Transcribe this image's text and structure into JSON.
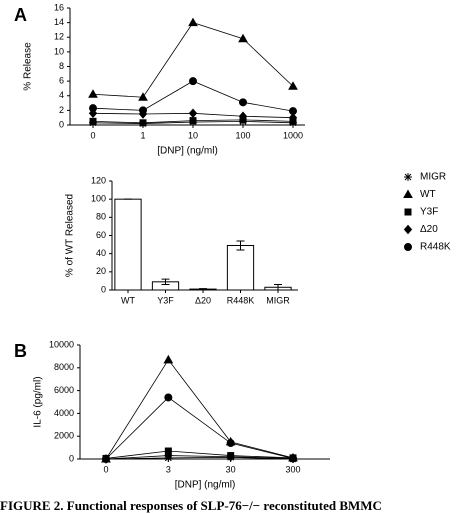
{
  "panel_labels": [
    "A",
    "B"
  ],
  "caption": "FIGURE 2.  Functional responses of SLP-76−/− reconstituted BMMC",
  "chart_data": [
    {
      "type": "line",
      "xlabel": "[DNP] (ng/ml)",
      "ylabel": "% Release",
      "categories": [
        "0",
        "1",
        "10",
        "100",
        "1000"
      ],
      "ylim": [
        0,
        16
      ],
      "yticks": [
        0,
        2,
        4,
        6,
        8,
        10,
        12,
        14,
        16
      ],
      "series": [
        {
          "name": "MIGR",
          "color": "#000000",
          "marker": "asterisk",
          "values": [
            0.3,
            0.2,
            0.4,
            0.5,
            0.3
          ]
        },
        {
          "name": "WT",
          "color": "#000000",
          "marker": "triangle",
          "values": [
            4.2,
            3.8,
            14,
            11.8,
            5.3
          ]
        },
        {
          "name": "Y3F",
          "color": "#000000",
          "marker": "square",
          "values": [
            0.5,
            0.3,
            0.6,
            0.7,
            0.5
          ]
        },
        {
          "name": "Δ20",
          "color": "#000000",
          "marker": "diamond",
          "values": [
            1.6,
            1.5,
            1.6,
            1.2,
            1.0
          ]
        },
        {
          "name": "R448K",
          "color": "#000000",
          "marker": "circle",
          "values": [
            2.3,
            2.0,
            6,
            3.1,
            1.9
          ]
        }
      ]
    },
    {
      "type": "bar",
      "ylabel": "% of WT Released",
      "categories": [
        "WT",
        "Y3F",
        "Δ20",
        "R448K",
        "MIGR"
      ],
      "values": [
        100,
        9,
        1,
        49,
        3
      ],
      "errors": [
        0,
        3,
        0.5,
        5,
        3
      ],
      "color": "#ffffff",
      "ylim": [
        0,
        120
      ],
      "yticks": [
        0,
        20,
        40,
        60,
        80,
        100,
        120
      ]
    },
    {
      "type": "line",
      "xlabel": "[DNP] (ng/ml)",
      "ylabel": "IL-6 (pg/ml)",
      "categories": [
        "0",
        "3",
        "30",
        "300"
      ],
      "ylim": [
        0,
        10000
      ],
      "yticks": [
        0,
        2000,
        4000,
        6000,
        8000,
        10000
      ],
      "series": [
        {
          "name": "MIGR",
          "color": "#000000",
          "marker": "asterisk",
          "values": [
            0,
            100,
            150,
            0
          ]
        },
        {
          "name": "WT",
          "color": "#000000",
          "marker": "triangle",
          "values": [
            0,
            8700,
            1500,
            100
          ]
        },
        {
          "name": "Y3F",
          "color": "#000000",
          "marker": "square",
          "values": [
            50,
            700,
            300,
            100
          ]
        },
        {
          "name": "Δ20",
          "color": "#000000",
          "marker": "diamond",
          "values": [
            0,
            300,
            200,
            50
          ]
        },
        {
          "name": "R448K",
          "color": "#000000",
          "marker": "circle",
          "values": [
            0,
            5400,
            1400,
            50
          ]
        }
      ]
    }
  ]
}
